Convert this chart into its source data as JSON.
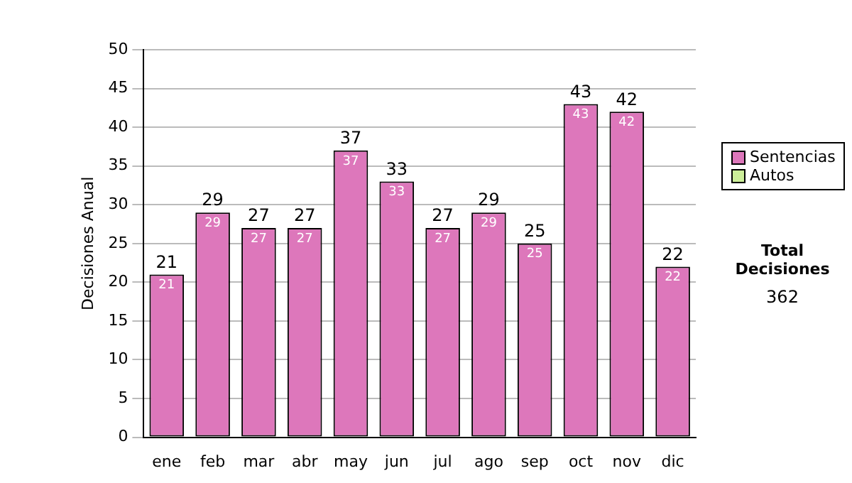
{
  "chart_data": {
    "type": "bar",
    "ylabel": "Decisiones Anual",
    "categories": [
      "ene",
      "feb",
      "mar",
      "abr",
      "may",
      "jun",
      "jul",
      "ago",
      "sep",
      "oct",
      "nov",
      "dic"
    ],
    "series": [
      {
        "name": "Sentencias",
        "color": "#dd77bb",
        "values": [
          21,
          29,
          27,
          27,
          37,
          33,
          27,
          29,
          25,
          43,
          42,
          22
        ],
        "value_labels": [
          "21",
          "29",
          "27",
          "27",
          "37",
          "33",
          "27",
          "29",
          "25",
          "43",
          "42",
          "22"
        ]
      },
      {
        "name": "Autos",
        "color": "#ccee99",
        "values": [
          0,
          0,
          0,
          0,
          0,
          0,
          0,
          0,
          0,
          0,
          0,
          0
        ],
        "value_labels": [
          null,
          null,
          null,
          null,
          null,
          null,
          null,
          null,
          null,
          null,
          null,
          null
        ]
      }
    ],
    "stacked": true,
    "totals": [
      "21",
      "29",
      "27",
      "27",
      "37",
      "33",
      "27",
      "29",
      "25",
      "43",
      "42",
      "22"
    ],
    "ylim": [
      0,
      50
    ],
    "yticks": [
      0,
      5,
      10,
      15,
      20,
      25,
      30,
      35,
      40,
      45,
      50
    ],
    "grid": "y",
    "legend": "right",
    "annotations": [
      "Total Decisiones",
      "362"
    ]
  }
}
